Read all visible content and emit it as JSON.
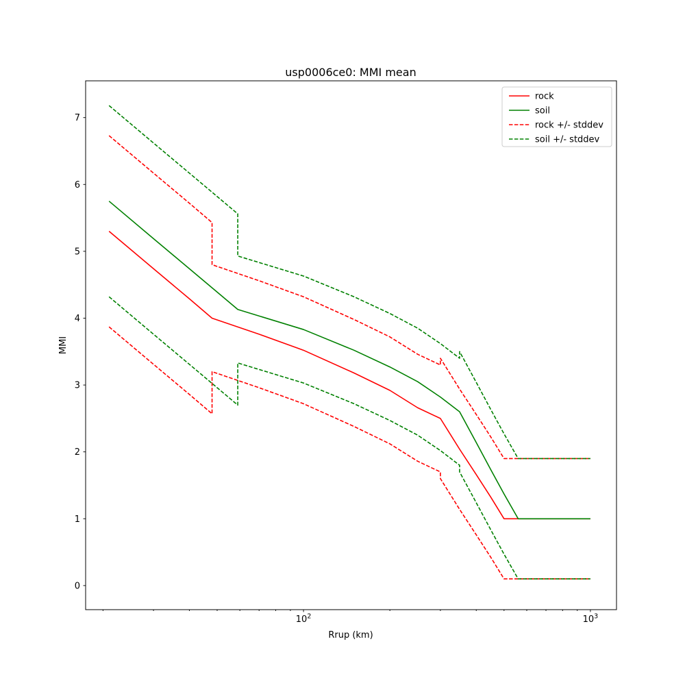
{
  "chart_data": {
    "type": "line",
    "title": "usp0006ce0: MMI mean",
    "xlabel": "Rrup (km)",
    "ylabel": "MMI",
    "x_scale": "log",
    "xlim": [
      17.4,
      1233
    ],
    "ylim": [
      -0.36,
      7.55
    ],
    "grid": false,
    "legend_position": "upper right",
    "y_ticks": [
      0,
      1,
      2,
      3,
      4,
      5,
      6,
      7
    ],
    "x_major_ticks": [
      {
        "value": 100,
        "base": "10",
        "exp": "2"
      },
      {
        "value": 1000,
        "base": "10",
        "exp": "3"
      }
    ],
    "x_minor_ticks": [
      20,
      30,
      40,
      50,
      60,
      70,
      80,
      90,
      200,
      300,
      400,
      500,
      600,
      700,
      800,
      900
    ],
    "series": [
      {
        "name": "rock",
        "color": "#ff0000",
        "style": "solid",
        "lines": [
          [
            [
              21,
              5.3
            ],
            [
              30,
              4.74
            ],
            [
              40,
              4.29
            ],
            [
              48,
              4.0
            ],
            [
              70,
              3.76
            ],
            [
              100,
              3.52
            ],
            [
              150,
              3.18
            ],
            [
              200,
              2.92
            ],
            [
              250,
              2.66
            ],
            [
              300,
              2.5
            ],
            [
              350,
              2.04
            ],
            [
              400,
              1.66
            ],
            [
              450,
              1.32
            ],
            [
              500,
              1.0
            ],
            [
              1000,
              1.0
            ]
          ]
        ]
      },
      {
        "name": "soil",
        "color": "#008000",
        "style": "solid",
        "lines": [
          [
            [
              21,
              5.75
            ],
            [
              30,
              5.19
            ],
            [
              40,
              4.74
            ],
            [
              50,
              4.39
            ],
            [
              59,
              4.13
            ],
            [
              100,
              3.83
            ],
            [
              150,
              3.52
            ],
            [
              200,
              3.27
            ],
            [
              250,
              3.05
            ],
            [
              300,
              2.82
            ],
            [
              350,
              2.6
            ],
            [
              400,
              2.14
            ],
            [
              450,
              1.73
            ],
            [
              500,
              1.37
            ],
            [
              560,
              1.0
            ],
            [
              1000,
              1.0
            ]
          ]
        ]
      },
      {
        "name": "rock +/- stddev",
        "color": "#ff0000",
        "style": "dashed",
        "lines": [
          [
            [
              21,
              6.73
            ],
            [
              30,
              6.17
            ],
            [
              40,
              5.72
            ],
            [
              48,
              5.43
            ],
            [
              48,
              4.8
            ],
            [
              70,
              4.56
            ],
            [
              100,
              4.32
            ],
            [
              150,
              3.98
            ],
            [
              200,
              3.72
            ],
            [
              250,
              3.46
            ],
            [
              300,
              3.3
            ],
            [
              300,
              3.4
            ],
            [
              350,
              2.94
            ],
            [
              400,
              2.56
            ],
            [
              450,
              2.22
            ],
            [
              500,
              1.9
            ],
            [
              1000,
              1.9
            ]
          ],
          [
            [
              21,
              3.87
            ],
            [
              30,
              3.31
            ],
            [
              40,
              2.86
            ],
            [
              48,
              2.57
            ],
            [
              48,
              3.2
            ],
            [
              70,
              2.96
            ],
            [
              100,
              2.72
            ],
            [
              150,
              2.38
            ],
            [
              200,
              2.12
            ],
            [
              250,
              1.86
            ],
            [
              300,
              1.7
            ],
            [
              300,
              1.6
            ],
            [
              350,
              1.14
            ],
            [
              400,
              0.76
            ],
            [
              450,
              0.42
            ],
            [
              500,
              0.1
            ],
            [
              1000,
              0.1
            ]
          ]
        ]
      },
      {
        "name": "soil +/- stddev",
        "color": "#008000",
        "style": "dashed",
        "lines": [
          [
            [
              21,
              7.18
            ],
            [
              30,
              6.62
            ],
            [
              40,
              6.17
            ],
            [
              50,
              5.82
            ],
            [
              59,
              5.56
            ],
            [
              59,
              4.93
            ],
            [
              100,
              4.63
            ],
            [
              150,
              4.32
            ],
            [
              200,
              4.07
            ],
            [
              250,
              3.85
            ],
            [
              300,
              3.62
            ],
            [
              350,
              3.4
            ],
            [
              350,
              3.5
            ],
            [
              400,
              3.04
            ],
            [
              450,
              2.63
            ],
            [
              500,
              2.27
            ],
            [
              560,
              1.9
            ],
            [
              1000,
              1.9
            ]
          ],
          [
            [
              21,
              4.32
            ],
            [
              30,
              3.76
            ],
            [
              40,
              3.31
            ],
            [
              50,
              2.96
            ],
            [
              59,
              2.7
            ],
            [
              59,
              3.33
            ],
            [
              100,
              3.03
            ],
            [
              150,
              2.72
            ],
            [
              200,
              2.47
            ],
            [
              250,
              2.25
            ],
            [
              300,
              2.02
            ],
            [
              350,
              1.8
            ],
            [
              350,
              1.7
            ],
            [
              400,
              1.24
            ],
            [
              450,
              0.83
            ],
            [
              500,
              0.47
            ],
            [
              560,
              0.1
            ],
            [
              1000,
              0.1
            ]
          ]
        ]
      }
    ]
  }
}
